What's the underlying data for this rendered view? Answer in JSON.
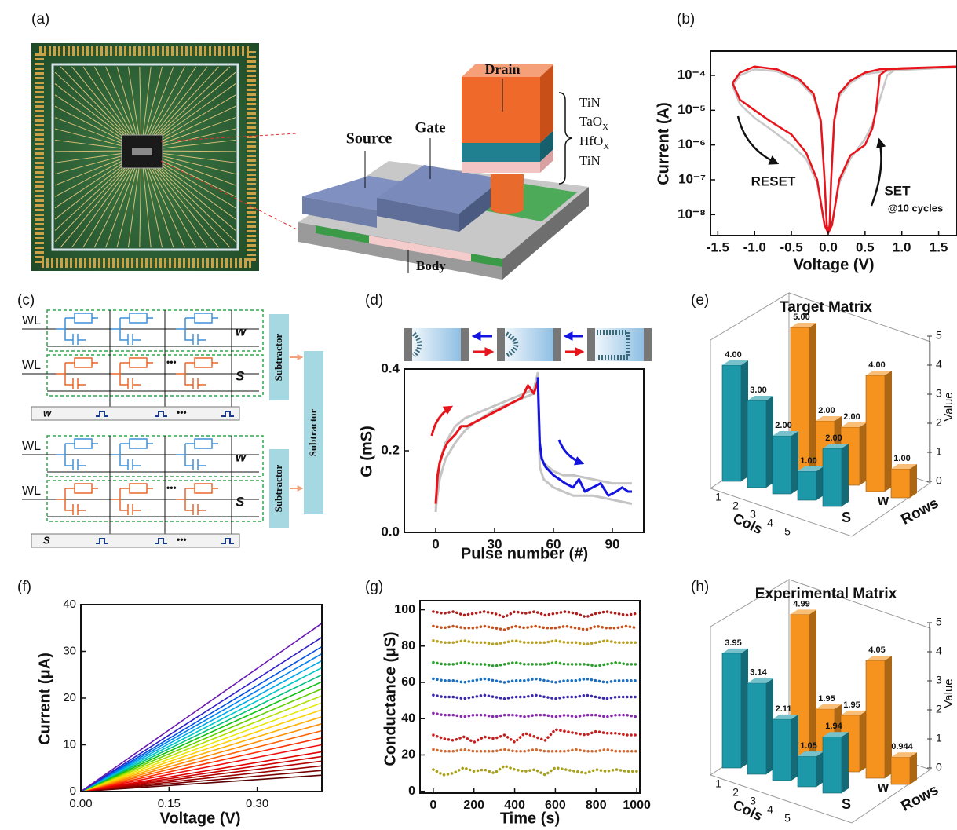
{
  "panel_labels": [
    "(a)",
    "(b)",
    "(c)",
    "(d)",
    "(e)",
    "(f)",
    "(g)",
    "(h)"
  ],
  "diagram_a": {
    "drain": "Drain",
    "source": "Source",
    "gate": "Gate",
    "body": "Body",
    "layers": [
      {
        "text": "TiN"
      },
      {
        "text": "TaO",
        "sub": "X"
      },
      {
        "text": "HfO",
        "sub": "X"
      },
      {
        "text": "TiN"
      }
    ]
  },
  "diagram_c": {
    "word_lines": [
      "WL",
      "WL",
      "WL",
      "WL"
    ],
    "row_tags": [
      "w",
      "S",
      "w",
      "S"
    ],
    "subtractors": [
      "Subtractor",
      "Subtractor",
      "Subtractor"
    ],
    "inputs": [
      "w",
      "S"
    ],
    "ellipsis": "•••"
  },
  "chart_data": [
    {
      "type": "line",
      "xlabel": "Voltage (V)",
      "ylabel": "Current (A)",
      "log_y": true,
      "xlim": [
        -1.6,
        1.75
      ],
      "ylim": [
        2.5e-09,
        0.0005
      ],
      "xticks": [
        -1.5,
        {
          "value": -1,
          "label": "-1.0"
        },
        -0.5,
        {
          "value": 0,
          "label": "0.0"
        },
        0.5,
        {
          "value": 1,
          "label": "1.0"
        },
        1.5
      ],
      "yticks": [
        {
          "value": 1e-08,
          "label": "10⁻⁸"
        },
        {
          "value": 1e-07,
          "label": "10⁻⁷"
        },
        {
          "value": 1e-06,
          "label": "10⁻⁶"
        },
        {
          "value": 1e-05,
          "label": "10⁻⁵"
        },
        {
          "value": 0.0001,
          "label": "10⁻⁴"
        }
      ],
      "annotations": [
        "RESET",
        "SET",
        "@10 cycles"
      ],
      "series": [
        {
          "color": "#c8c8c8",
          "x": [
            1.75,
            1.0,
            0.5,
            0.3,
            0.15,
            0.08,
            0.04,
            0.02,
            0,
            -0.02,
            -0.05,
            -0.1,
            -0.2,
            -0.4,
            -0.7,
            -1.0,
            -1.2,
            -1.3
          ],
          "values": [
            0.00017,
            0.00015,
            0.00011,
            6e-05,
            2.5e-05,
            4e-06,
            1e-07,
            6e-09,
            3e-09,
            6e-09,
            1e-07,
            4e-06,
            2.5e-05,
            7e-05,
            0.00013,
            0.00015,
            0.0001,
            5e-05
          ]
        },
        {
          "color": "#c8c8c8",
          "x": [
            -1.3,
            -1.2,
            -1.0,
            -0.8,
            -0.5,
            -0.3,
            -0.15,
            -0.05,
            0,
            0.05,
            0.15,
            0.3,
            0.5,
            0.6,
            0.7,
            0.8,
            0.9,
            1.75
          ],
          "values": [
            5e-05,
            1.5e-05,
            6e-06,
            3e-06,
            1e-06,
            4e-07,
            8e-08,
            5e-09,
            3e-09,
            5e-09,
            8e-08,
            4e-07,
            1.5e-06,
            4e-06,
            2e-05,
            0.0001,
            0.00014,
            0.00017
          ]
        },
        {
          "color": "#e8141c",
          "x": [
            1.75,
            1.0,
            0.7,
            0.5,
            0.3,
            0.15,
            0.08,
            0.04,
            0.02,
            0,
            -0.02,
            -0.05,
            -0.1,
            -0.2,
            -0.4,
            -0.7,
            -1.0,
            -1.2,
            -1.3
          ],
          "values": [
            0.00018,
            0.00016,
            0.00015,
            0.00012,
            7e-05,
            3e-05,
            5e-06,
            1e-07,
            5e-09,
            3e-09,
            5e-09,
            1e-07,
            5e-06,
            3e-05,
            8e-05,
            0.00015,
            0.00018,
            0.00012,
            6e-05
          ]
        },
        {
          "color": "#e8141c",
          "x": [
            -1.3,
            -1.2,
            -1.0,
            -0.8,
            -0.5,
            -0.3,
            -0.15,
            -0.05,
            0,
            0.05,
            0.15,
            0.3,
            0.5,
            0.6,
            0.65,
            0.7,
            0.8,
            1.75
          ],
          "values": [
            6e-05,
            2e-05,
            1e-05,
            5e-06,
            2e-06,
            6e-07,
            1e-07,
            5e-09,
            3e-09,
            5e-09,
            1e-07,
            5e-07,
            1e-06,
            3e-06,
            1e-05,
            0.0001,
            0.00015,
            0.00018
          ]
        }
      ]
    },
    {
      "type": "line",
      "xlabel": "Pulse number (#)",
      "ylabel": "G (mS)",
      "xlim": [
        -16,
        106
      ],
      "ylim": [
        0,
        0.4
      ],
      "xticks": [
        0,
        30,
        60,
        90
      ],
      "yticks": [
        {
          "value": 0,
          "label": "0.0"
        },
        0.2,
        0.4
      ],
      "series": [
        {
          "color": "#c4c4c4",
          "x": [
            0,
            2,
            5,
            10,
            15,
            20,
            30,
            40,
            50,
            52,
            53,
            55,
            60,
            65,
            70,
            80,
            90,
            100
          ],
          "values": [
            0.05,
            0.17,
            0.22,
            0.26,
            0.28,
            0.29,
            0.31,
            0.33,
            0.35,
            0.39,
            0.2,
            0.17,
            0.15,
            0.14,
            0.14,
            0.13,
            0.12,
            0.12
          ]
        },
        {
          "color": "#c4c4c4",
          "x": [
            0,
            2,
            5,
            10,
            15,
            20,
            30,
            40,
            50,
            52,
            53,
            55,
            60,
            65,
            70,
            80,
            90,
            100
          ],
          "values": [
            0.06,
            0.13,
            0.18,
            0.22,
            0.25,
            0.27,
            0.3,
            0.32,
            0.34,
            0.37,
            0.16,
            0.13,
            0.11,
            0.1,
            0.09,
            0.09,
            0.08,
            0.07
          ]
        },
        {
          "color": "#e8141c",
          "x": [
            0,
            1,
            2,
            4,
            6,
            8,
            10,
            13,
            16,
            20,
            24,
            28,
            32,
            36,
            40,
            44,
            47,
            50,
            52
          ],
          "values": [
            0.07,
            0.14,
            0.17,
            0.2,
            0.22,
            0.23,
            0.24,
            0.26,
            0.26,
            0.27,
            0.28,
            0.29,
            0.3,
            0.31,
            0.32,
            0.33,
            0.36,
            0.34,
            0.37
          ]
        },
        {
          "color": "#1414e0",
          "x": [
            52,
            53,
            54,
            56,
            58,
            60,
            63,
            66,
            70,
            73,
            76,
            80,
            84,
            88,
            92,
            95,
            98,
            100
          ],
          "values": [
            0.38,
            0.22,
            0.18,
            0.16,
            0.15,
            0.14,
            0.13,
            0.12,
            0.11,
            0.13,
            0.1,
            0.11,
            0.12,
            0.09,
            0.1,
            0.11,
            0.1,
            0.1
          ]
        }
      ]
    },
    {
      "type": "bar3d",
      "title": "Target Matrix",
      "xlabel": "Cols",
      "ylabel": "Rows",
      "zlabel": "Value",
      "categories": [
        1,
        2,
        3,
        4,
        5
      ],
      "zlim": [
        0,
        5
      ],
      "zticks": [
        0,
        1,
        2,
        3,
        4,
        5
      ],
      "series": [
        {
          "name": "S",
          "color": "#1c98a8",
          "values": [
            4,
            3,
            2,
            1,
            2
          ],
          "value_labels": [
            "4.00",
            "3.00",
            "2.00",
            "1.00",
            "2.00"
          ]
        },
        {
          "name": "w",
          "color": "#f5931e",
          "values": [
            5,
            2,
            2,
            4,
            1
          ],
          "value_labels": [
            "5.00",
            "2.00",
            "2.00",
            "4.00",
            "1.00"
          ]
        }
      ]
    },
    {
      "type": "line",
      "xlabel": "Voltage (V)",
      "ylabel": "Current (μA)",
      "xlim": [
        0,
        0.41
      ],
      "ylim": [
        0,
        40
      ],
      "xticks": [
        {
          "value": 0,
          "label": "0.00"
        },
        0.15,
        {
          "value": 0.3,
          "label": "0.30"
        }
      ],
      "yticks": [
        0,
        10,
        20,
        30,
        40
      ],
      "x": [
        0,
        0.41
      ],
      "series": [
        {
          "color": "#5a0000",
          "values": [
            0,
            3.5
          ]
        },
        {
          "color": "#7a0000",
          "values": [
            0,
            4.5
          ]
        },
        {
          "color": "#990000",
          "values": [
            0,
            5.5
          ]
        },
        {
          "color": "#b30000",
          "values": [
            0,
            6.5
          ]
        },
        {
          "color": "#cc0000",
          "values": [
            0,
            7.5
          ]
        },
        {
          "color": "#e00000",
          "values": [
            0,
            8.5
          ]
        },
        {
          "color": "#f01010",
          "values": [
            0,
            10
          ]
        },
        {
          "color": "#ff3000",
          "values": [
            0,
            11.5
          ]
        },
        {
          "color": "#ff6000",
          "values": [
            0,
            13
          ]
        },
        {
          "color": "#ff8c00",
          "values": [
            0,
            14.5
          ]
        },
        {
          "color": "#ffb000",
          "values": [
            0,
            16
          ]
        },
        {
          "color": "#ffd000",
          "values": [
            0,
            17.5
          ]
        },
        {
          "color": "#e8e800",
          "values": [
            0,
            19
          ]
        },
        {
          "color": "#b0e000",
          "values": [
            0,
            20.5
          ]
        },
        {
          "color": "#60d000",
          "values": [
            0,
            22
          ]
        },
        {
          "color": "#10c010",
          "values": [
            0,
            23.5
          ]
        },
        {
          "color": "#00c080",
          "values": [
            0,
            25
          ]
        },
        {
          "color": "#00c8c8",
          "values": [
            0,
            26.5
          ]
        },
        {
          "color": "#00a8e8",
          "values": [
            0,
            28
          ]
        },
        {
          "color": "#0080f0",
          "values": [
            0,
            29.5
          ]
        },
        {
          "color": "#0050e0",
          "values": [
            0,
            31
          ]
        },
        {
          "color": "#3020c8",
          "values": [
            0,
            33
          ]
        },
        {
          "color": "#6a1ab0",
          "values": [
            0,
            36
          ]
        }
      ]
    },
    {
      "type": "line",
      "dotted": true,
      "xlabel": "Time (s)",
      "ylabel": "Conductance (μS)",
      "xlim": [
        -65,
        1015
      ],
      "ylim": [
        -1,
        105
      ],
      "xticks": [
        0,
        200,
        400,
        600,
        800,
        1000
      ],
      "yticks": [
        0,
        20,
        40,
        60,
        80,
        100
      ],
      "x": [
        0,
        50,
        100,
        150,
        200,
        250,
        300,
        350,
        400,
        450,
        500,
        550,
        600,
        650,
        700,
        750,
        800,
        850,
        900,
        950,
        1000
      ],
      "series": [
        {
          "color": "#b01c1c",
          "values": [
            99,
            98,
            99,
            97,
            98,
            99,
            98,
            96,
            99,
            98,
            99,
            97,
            98,
            99,
            98,
            96,
            98,
            99,
            98,
            97,
            98
          ]
        },
        {
          "color": "#c8501a",
          "values": [
            91,
            90,
            91,
            90,
            90,
            91,
            90,
            89,
            91,
            90,
            91,
            90,
            90,
            91,
            90,
            89,
            91,
            90,
            90,
            91,
            90
          ]
        },
        {
          "color": "#b8a020",
          "values": [
            83,
            82,
            82,
            83,
            82,
            82,
            81,
            82,
            83,
            82,
            82,
            82,
            83,
            82,
            82,
            81,
            82,
            83,
            82,
            82,
            82
          ]
        },
        {
          "color": "#2aa02a",
          "values": [
            71,
            70,
            70,
            71,
            70,
            70,
            69,
            70,
            71,
            70,
            70,
            70,
            71,
            70,
            70,
            70,
            69,
            70,
            71,
            70,
            70
          ]
        },
        {
          "color": "#1a6fc0",
          "values": [
            62,
            61,
            61,
            60,
            61,
            62,
            61,
            60,
            61,
            61,
            62,
            61,
            60,
            61,
            61,
            62,
            61,
            60,
            61,
            61,
            61
          ]
        },
        {
          "color": "#3a2ab0",
          "values": [
            53,
            52,
            52,
            51,
            52,
            53,
            52,
            51,
            52,
            52,
            53,
            52,
            51,
            52,
            52,
            53,
            52,
            51,
            52,
            52,
            52
          ]
        },
        {
          "color": "#8a2ab0",
          "values": [
            43,
            42,
            42,
            41,
            42,
            42,
            41,
            42,
            42,
            41,
            42,
            42,
            41,
            42,
            41,
            42,
            42,
            41,
            42,
            42,
            41
          ]
        },
        {
          "color": "#c81e1e",
          "values": [
            31,
            29,
            28,
            30,
            27,
            30,
            29,
            31,
            27,
            32,
            30,
            28,
            34,
            33,
            32,
            31,
            33,
            32,
            32,
            31,
            31
          ]
        },
        {
          "color": "#d06a30",
          "values": [
            23,
            22,
            22,
            23,
            22,
            22,
            22,
            23,
            22,
            22,
            23,
            22,
            22,
            22,
            23,
            22,
            22,
            23,
            22,
            22,
            22
          ]
        },
        {
          "color": "#a8a018",
          "values": [
            12,
            9,
            10,
            13,
            11,
            12,
            10,
            14,
            12,
            11,
            12,
            9,
            13,
            12,
            11,
            10,
            12,
            11,
            12,
            11,
            11
          ]
        }
      ]
    },
    {
      "type": "bar3d",
      "title": "Experimental Matrix",
      "xlabel": "Cols",
      "ylabel": "Rows",
      "zlabel": "Value",
      "categories": [
        1,
        2,
        3,
        4,
        5
      ],
      "zlim": [
        0,
        5
      ],
      "zticks": [
        0,
        1,
        2,
        3,
        4,
        5
      ],
      "series": [
        {
          "name": "S",
          "color": "#1c98a8",
          "values": [
            3.95,
            3.14,
            2.11,
            1.05,
            1.94
          ]
        },
        {
          "name": "w",
          "color": "#f5931e",
          "values": [
            4.99,
            1.95,
            1.95,
            4.05,
            0.944
          ]
        }
      ]
    }
  ]
}
